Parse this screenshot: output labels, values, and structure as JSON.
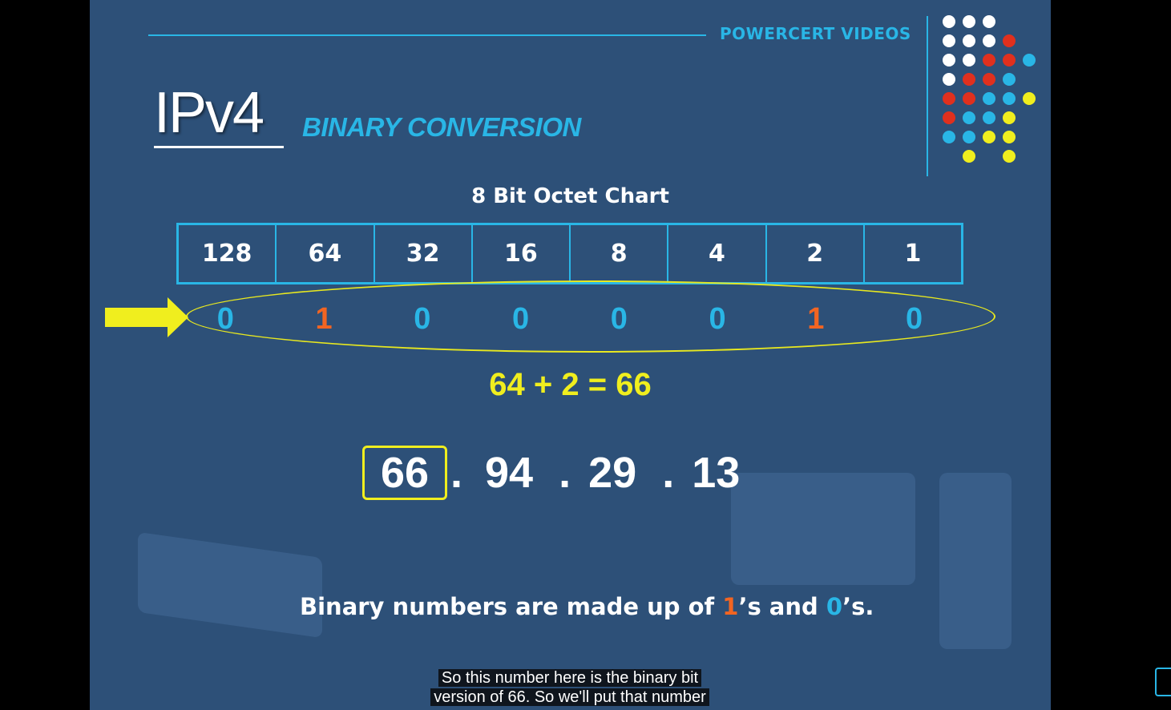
{
  "brand": "POWERCERT VIDEOS",
  "title": {
    "main": "IPv4",
    "subtitle": "BINARY CONVERSION"
  },
  "chart": {
    "title": "8 Bit Octet Chart",
    "place_values": [
      "128",
      "64",
      "32",
      "16",
      "8",
      "4",
      "2",
      "1"
    ],
    "bits": [
      "0",
      "1",
      "0",
      "0",
      "0",
      "0",
      "1",
      "0"
    ]
  },
  "sum": "64 + 2 = 66",
  "ip_address": {
    "octets": [
      "66",
      "94",
      "29",
      "13"
    ],
    "separator": "."
  },
  "footnote": {
    "prefix": "Binary numbers are made up of ",
    "one": "1",
    "middle": "’s and ",
    "zero": "0",
    "suffix": "’s."
  },
  "caption": {
    "line1": "So this number here is the binary bit",
    "line2": "version of 66.  So we'll put that number"
  },
  "colors": {
    "background": "#2d5078",
    "accent": "#29b6e6",
    "highlight": "#f0ee1e",
    "one_bit": "#f26522",
    "zero_bit": "#29b6e6"
  }
}
